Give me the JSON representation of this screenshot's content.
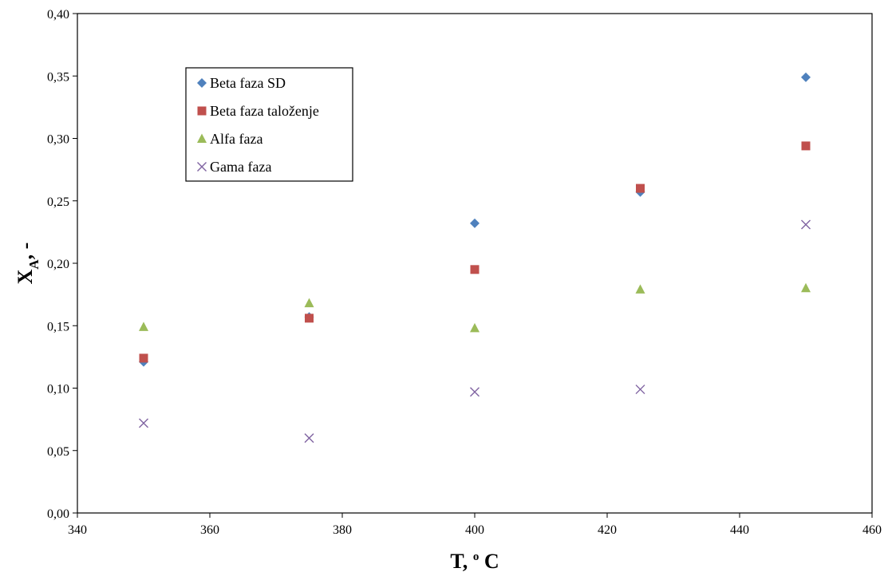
{
  "chart_data": {
    "type": "scatter",
    "title": "",
    "xlabel": "T, ",
    "xlabel_sup": "o",
    "xlabel_tail": " C",
    "ylabel": "X",
    "ylabel_sub": "A",
    "ylabel_tail": ", -",
    "xlim": [
      340,
      460
    ],
    "ylim": [
      0,
      0.4
    ],
    "x_ticks": [
      340,
      360,
      380,
      400,
      420,
      440,
      460
    ],
    "y_ticks": [
      0,
      0.05,
      0.1,
      0.15,
      0.2,
      0.25,
      0.3,
      0.35,
      0.4
    ],
    "y_tick_labels": [
      "0,00",
      "0,05",
      "0,10",
      "0,15",
      "0,20",
      "0,25",
      "0,30",
      "0,35",
      "0,40"
    ],
    "x_tick_labels": [
      "340",
      "360",
      "380",
      "400",
      "420",
      "440",
      "460"
    ],
    "grid": false,
    "legend_position": "upper-left",
    "x": [
      350,
      375,
      400,
      425,
      450
    ],
    "series": [
      {
        "name": "Beta faza SD",
        "marker": "diamond",
        "color": "#4F81BD",
        "values": [
          0.121,
          0.157,
          0.232,
          0.257,
          0.349
        ]
      },
      {
        "name": "Beta faza taloženje",
        "marker": "square",
        "color": "#C0504D",
        "values": [
          0.124,
          0.156,
          0.195,
          0.26,
          0.294
        ]
      },
      {
        "name": "Alfa faza",
        "marker": "triangle",
        "color": "#9BBB59",
        "values": [
          0.149,
          0.168,
          0.148,
          0.179,
          0.18
        ]
      },
      {
        "name": "Gama faza",
        "marker": "x",
        "color": "#8064A2",
        "values": [
          0.072,
          0.06,
          0.097,
          0.099,
          0.231
        ]
      }
    ]
  }
}
